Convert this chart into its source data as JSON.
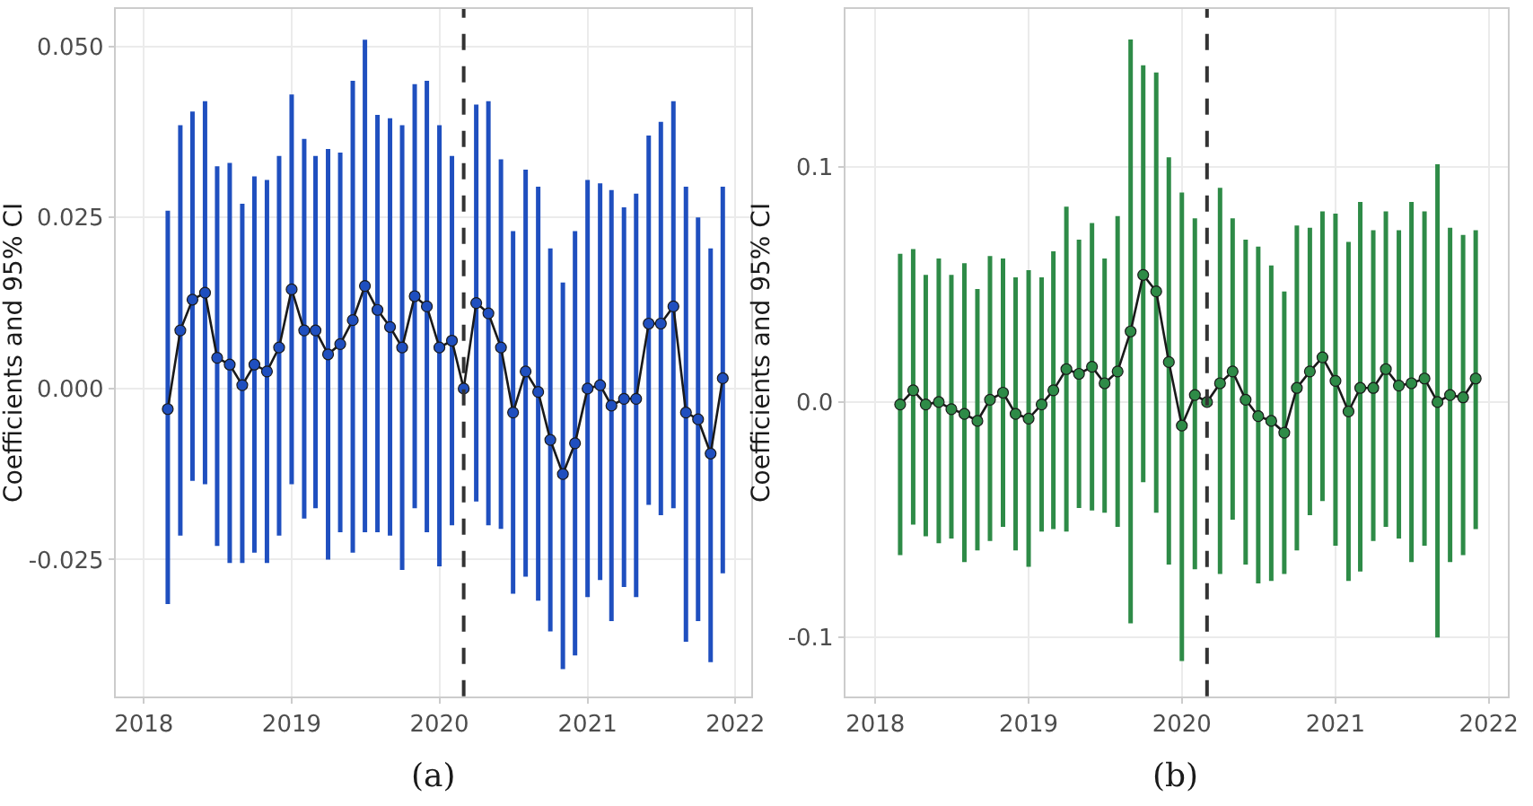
{
  "chart_data": [
    {
      "type": "line",
      "ylabel": "Coefficients and 95% CI",
      "annotations": [
        "(a)"
      ],
      "marker": "circle",
      "grid": true,
      "x": [
        "2018-03",
        "2018-04",
        "2018-05",
        "2018-06",
        "2018-07",
        "2018-08",
        "2018-09",
        "2018-10",
        "2018-11",
        "2018-12",
        "2019-01",
        "2019-02",
        "2019-03",
        "2019-04",
        "2019-05",
        "2019-06",
        "2019-07",
        "2019-08",
        "2019-09",
        "2019-10",
        "2019-11",
        "2019-12",
        "2020-01",
        "2020-02",
        "2020-03",
        "2020-04",
        "2020-05",
        "2020-06",
        "2020-07",
        "2020-08",
        "2020-09",
        "2020-10",
        "2020-11",
        "2020-12",
        "2021-01",
        "2021-02",
        "2021-03",
        "2021-04",
        "2021-05",
        "2021-06",
        "2021-07",
        "2021-08",
        "2021-09",
        "2021-10",
        "2021-11",
        "2021-12"
      ],
      "xlim": [
        "2017-10-23",
        "2022-02-09"
      ],
      "xticks": [
        "2018",
        "2019",
        "2020",
        "2021",
        "2022"
      ],
      "ylim": [
        -0.045,
        0.0555
      ],
      "yticks": [
        {
          "value": -0.025,
          "label": "-0.025"
        },
        {
          "value": 0,
          "label": "0.000"
        },
        {
          "value": 0.025,
          "label": "0.025"
        },
        {
          "value": 0.05,
          "label": "0.050"
        }
      ],
      "ref_lines": [
        {
          "axis": "x",
          "value": "2020-03",
          "label": null,
          "color": "#333333",
          "line_style": "dashed"
        }
      ],
      "series": [
        {
          "color": "#1f4fbf",
          "values": [
            -0.003,
            0.0085,
            0.013,
            0.014,
            0.0045,
            0.0035,
            0.0005,
            0.0035,
            0.0025,
            0.006,
            0.0145,
            0.0085,
            0.0085,
            0.005,
            0.0065,
            0.01,
            0.015,
            0.0115,
            0.009,
            0.006,
            0.0135,
            0.012,
            0.006,
            0.007,
            0.0,
            0.0125,
            0.011,
            0.006,
            -0.0035,
            0.0025,
            -0.0005,
            -0.0075,
            -0.0125,
            -0.008,
            0.0,
            0.0005,
            -0.0025,
            -0.0015,
            -0.0015,
            0.0095,
            0.0095,
            0.012,
            -0.0035,
            -0.0045,
            -0.0095,
            0.0015
          ],
          "errors": [
            [
              -0.0315,
              0.026
            ],
            [
              -0.0215,
              0.0385
            ],
            [
              -0.0135,
              0.0405
            ],
            [
              -0.014,
              0.042
            ],
            [
              -0.023,
              0.0325
            ],
            [
              -0.0255,
              0.033
            ],
            [
              -0.0255,
              0.027
            ],
            [
              -0.024,
              0.031
            ],
            [
              -0.0255,
              0.0305
            ],
            [
              -0.0215,
              0.034
            ],
            [
              -0.014,
              0.043
            ],
            [
              -0.019,
              0.0365
            ],
            [
              -0.0175,
              0.034
            ],
            [
              -0.025,
              0.035
            ],
            [
              -0.021,
              0.0345
            ],
            [
              -0.024,
              0.045
            ],
            [
              -0.021,
              0.051
            ],
            [
              -0.021,
              0.04
            ],
            [
              -0.0215,
              0.0395
            ],
            [
              -0.0265,
              0.0385
            ],
            [
              -0.0175,
              0.0445
            ],
            [
              -0.021,
              0.045
            ],
            [
              -0.026,
              0.0385
            ],
            [
              -0.02,
              0.034
            ],
            null,
            [
              -0.0165,
              0.0415
            ],
            [
              -0.02,
              0.042
            ],
            [
              -0.0205,
              0.0335
            ],
            [
              -0.03,
              0.023
            ],
            [
              -0.0275,
              0.032
            ],
            [
              -0.031,
              0.0295
            ],
            [
              -0.0355,
              0.0205
            ],
            [
              -0.041,
              0.0155
            ],
            [
              -0.039,
              0.023
            ],
            [
              -0.0305,
              0.0305
            ],
            [
              -0.028,
              0.03
            ],
            [
              -0.034,
              0.029
            ],
            [
              -0.029,
              0.0265
            ],
            [
              -0.0305,
              0.0285
            ],
            [
              -0.017,
              0.037
            ],
            [
              -0.0185,
              0.039
            ],
            [
              -0.0175,
              0.042
            ],
            [
              -0.037,
              0.0295
            ],
            [
              -0.034,
              0.025
            ],
            [
              -0.04,
              0.0205
            ],
            [
              -0.027,
              0.0295
            ]
          ]
        }
      ]
    },
    {
      "type": "line",
      "ylabel": "Coefficients and 95% CI",
      "annotations": [
        "(b)"
      ],
      "marker": "circle",
      "grid": true,
      "x": [
        "2018-03",
        "2018-04",
        "2018-05",
        "2018-06",
        "2018-07",
        "2018-08",
        "2018-09",
        "2018-10",
        "2018-11",
        "2018-12",
        "2019-01",
        "2019-02",
        "2019-03",
        "2019-04",
        "2019-05",
        "2019-06",
        "2019-07",
        "2019-08",
        "2019-09",
        "2019-10",
        "2019-11",
        "2019-12",
        "2020-01",
        "2020-02",
        "2020-03",
        "2020-04",
        "2020-05",
        "2020-06",
        "2020-07",
        "2020-08",
        "2020-09",
        "2020-10",
        "2020-11",
        "2020-12",
        "2021-01",
        "2021-02",
        "2021-03",
        "2021-04",
        "2021-05",
        "2021-06",
        "2021-07",
        "2021-08",
        "2021-09",
        "2021-10",
        "2021-11",
        "2021-12"
      ],
      "xlim": [
        "2017-10-21",
        "2022-02-16"
      ],
      "xticks": [
        "2018",
        "2019",
        "2020",
        "2021",
        "2022"
      ],
      "ylim": [
        -0.125,
        0.167
      ],
      "yticks": [
        -0.1,
        {
          "value": 0,
          "label": "0.0"
        },
        0.1
      ],
      "ref_lines": [
        {
          "axis": "x",
          "value": "2020-03",
          "label": null,
          "color": "#333333",
          "line_style": "dashed"
        }
      ],
      "series": [
        {
          "color": "#2e8b47",
          "values": [
            -0.001,
            0.005,
            -0.001,
            0.0,
            -0.003,
            -0.005,
            -0.008,
            0.001,
            0.004,
            -0.005,
            -0.007,
            -0.001,
            0.005,
            0.014,
            0.012,
            0.015,
            0.008,
            0.013,
            0.03,
            0.054,
            0.047,
            0.017,
            -0.01,
            0.003,
            0.0,
            0.008,
            0.013,
            0.001,
            -0.006,
            -0.008,
            -0.013,
            0.006,
            0.013,
            0.019,
            0.009,
            -0.004,
            0.006,
            0.006,
            0.014,
            0.007,
            0.008,
            0.01,
            0.0,
            0.003,
            0.002,
            0.01
          ],
          "errors": [
            [
              -0.065,
              0.063
            ],
            [
              -0.052,
              0.065
            ],
            [
              -0.057,
              0.054
            ],
            [
              -0.06,
              0.061
            ],
            [
              -0.058,
              0.054
            ],
            [
              -0.068,
              0.059
            ],
            [
              -0.063,
              0.048
            ],
            [
              -0.059,
              0.062
            ],
            [
              -0.053,
              0.061
            ],
            [
              -0.063,
              0.053
            ],
            [
              -0.07,
              0.056
            ],
            [
              -0.055,
              0.053
            ],
            [
              -0.054,
              0.064
            ],
            [
              -0.055,
              0.083
            ],
            [
              -0.045,
              0.069
            ],
            [
              -0.046,
              0.076
            ],
            [
              -0.047,
              0.061
            ],
            [
              -0.053,
              0.079
            ],
            [
              -0.094,
              0.154
            ],
            [
              -0.034,
              0.143
            ],
            [
              -0.047,
              0.14
            ],
            [
              -0.069,
              0.104
            ],
            [
              -0.11,
              0.089
            ],
            [
              -0.071,
              0.078
            ],
            null,
            [
              -0.073,
              0.091
            ],
            [
              -0.05,
              0.078
            ],
            [
              -0.069,
              0.069
            ],
            [
              -0.077,
              0.066
            ],
            [
              -0.076,
              0.058
            ],
            [
              -0.073,
              0.047
            ],
            [
              -0.063,
              0.075
            ],
            [
              -0.048,
              0.074
            ],
            [
              -0.042,
              0.081
            ],
            [
              -0.061,
              0.08
            ],
            [
              -0.076,
              0.068
            ],
            [
              -0.072,
              0.085
            ],
            [
              -0.059,
              0.073
            ],
            [
              -0.053,
              0.081
            ],
            [
              -0.058,
              0.073
            ],
            [
              -0.068,
              0.085
            ],
            [
              -0.061,
              0.081
            ],
            [
              -0.1,
              0.101
            ],
            [
              -0.068,
              0.074
            ],
            [
              -0.065,
              0.071
            ],
            [
              -0.054,
              0.073
            ]
          ]
        }
      ]
    }
  ]
}
